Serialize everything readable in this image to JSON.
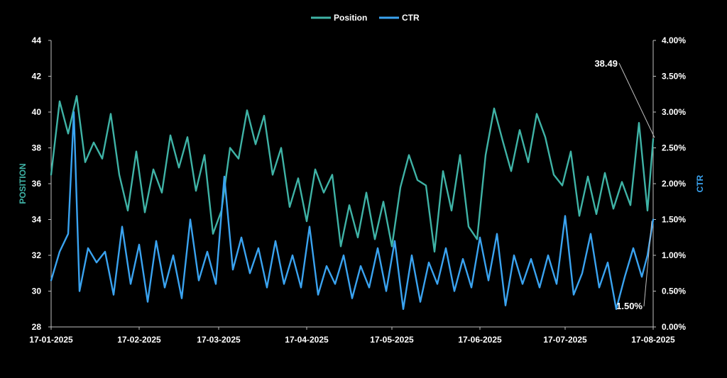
{
  "chart_data": {
    "type": "line",
    "legend": {
      "placement": "top-center",
      "entries": [
        "Position",
        "CTR"
      ]
    },
    "colors": {
      "Position": "#3fb3a6",
      "CTR": "#3aa3f0",
      "background": "#000000",
      "axis": "#bfbfbf"
    },
    "xaxis": {
      "range": [
        "17-01-2025",
        "17-08-2025"
      ],
      "tick_labels": [
        "17-01-2025",
        "17-02-2025",
        "17-03-2025",
        "17-04-2025",
        "17-05-2025",
        "17-06-2025",
        "17-07-2025",
        "17-08-2025"
      ]
    },
    "y_left": {
      "label": "POSITION",
      "range": [
        28,
        44
      ],
      "tick_labels": [
        "28",
        "30",
        "32",
        "34",
        "36",
        "38",
        "40",
        "42",
        "44"
      ]
    },
    "y_right": {
      "label": "CTR",
      "range": [
        0,
        4
      ],
      "tick_labels": [
        "0.00%",
        "0.50%",
        "1.00%",
        "1.50%",
        "2.00%",
        "2.50%",
        "3.00%",
        "3.50%",
        "4.00%"
      ]
    },
    "grid": false,
    "series": [
      {
        "name": "Position",
        "axis": "left",
        "points": [
          [
            "17-01-2025",
            36.5
          ],
          [
            "20-01-2025",
            40.6
          ],
          [
            "23-01-2025",
            38.8
          ],
          [
            "26-01-2025",
            40.9
          ],
          [
            "29-01-2025",
            37.2
          ],
          [
            "01-02-2025",
            38.3
          ],
          [
            "04-02-2025",
            37.4
          ],
          [
            "07-02-2025",
            39.9
          ],
          [
            "10-02-2025",
            36.5
          ],
          [
            "13-02-2025",
            34.5
          ],
          [
            "16-02-2025",
            37.8
          ],
          [
            "19-02-2025",
            34.4
          ],
          [
            "22-02-2025",
            36.8
          ],
          [
            "25-02-2025",
            35.5
          ],
          [
            "28-02-2025",
            38.7
          ],
          [
            "03-03-2025",
            36.9
          ],
          [
            "06-03-2025",
            38.6
          ],
          [
            "09-03-2025",
            35.6
          ],
          [
            "12-03-2025",
            37.6
          ],
          [
            "15-03-2025",
            33.2
          ],
          [
            "18-03-2025",
            34.5
          ],
          [
            "21-03-2025",
            38.0
          ],
          [
            "24-03-2025",
            37.4
          ],
          [
            "27-03-2025",
            40.1
          ],
          [
            "30-03-2025",
            38.2
          ],
          [
            "02-04-2025",
            39.8
          ],
          [
            "05-04-2025",
            36.5
          ],
          [
            "08-04-2025",
            38.0
          ],
          [
            "11-04-2025",
            34.7
          ],
          [
            "14-04-2025",
            36.3
          ],
          [
            "17-04-2025",
            33.9
          ],
          [
            "20-04-2025",
            36.8
          ],
          [
            "23-04-2025",
            35.5
          ],
          [
            "26-04-2025",
            36.5
          ],
          [
            "29-04-2025",
            32.5
          ],
          [
            "02-05-2025",
            34.8
          ],
          [
            "05-05-2025",
            33.0
          ],
          [
            "08-05-2025",
            35.5
          ],
          [
            "11-05-2025",
            32.9
          ],
          [
            "14-05-2025",
            35.0
          ],
          [
            "17-05-2025",
            32.5
          ],
          [
            "20-05-2025",
            35.8
          ],
          [
            "23-05-2025",
            37.6
          ],
          [
            "26-05-2025",
            36.2
          ],
          [
            "29-05-2025",
            35.9
          ],
          [
            "01-06-2025",
            32.2
          ],
          [
            "04-06-2025",
            36.7
          ],
          [
            "07-06-2025",
            34.5
          ],
          [
            "10-06-2025",
            37.6
          ],
          [
            "13-06-2025",
            33.6
          ],
          [
            "16-06-2025",
            32.9
          ],
          [
            "19-06-2025",
            37.6
          ],
          [
            "22-06-2025",
            40.2
          ],
          [
            "25-06-2025",
            38.4
          ],
          [
            "28-06-2025",
            36.7
          ],
          [
            "01-07-2025",
            39.0
          ],
          [
            "04-07-2025",
            37.2
          ],
          [
            "07-07-2025",
            39.9
          ],
          [
            "10-07-2025",
            38.6
          ],
          [
            "13-07-2025",
            36.5
          ],
          [
            "16-07-2025",
            35.9
          ],
          [
            "19-07-2025",
            37.8
          ],
          [
            "22-07-2025",
            34.2
          ],
          [
            "25-07-2025",
            36.4
          ],
          [
            "28-07-2025",
            34.3
          ],
          [
            "31-07-2025",
            36.6
          ],
          [
            "03-08-2025",
            34.6
          ],
          [
            "06-08-2025",
            36.1
          ],
          [
            "09-08-2025",
            34.8
          ],
          [
            "12-08-2025",
            39.4
          ],
          [
            "15-08-2025",
            34.5
          ],
          [
            "17-08-2025",
            38.49
          ]
        ]
      },
      {
        "name": "CTR",
        "axis": "right",
        "points": [
          [
            "17-01-2025",
            0.65
          ],
          [
            "20-01-2025",
            1.05
          ],
          [
            "23-01-2025",
            1.3
          ],
          [
            "25-01-2025",
            3.0
          ],
          [
            "27-01-2025",
            0.5
          ],
          [
            "30-01-2025",
            1.1
          ],
          [
            "02-02-2025",
            0.9
          ],
          [
            "05-02-2025",
            1.05
          ],
          [
            "08-02-2025",
            0.45
          ],
          [
            "11-02-2025",
            1.4
          ],
          [
            "14-02-2025",
            0.6
          ],
          [
            "17-02-2025",
            1.15
          ],
          [
            "20-02-2025",
            0.35
          ],
          [
            "23-02-2025",
            1.2
          ],
          [
            "26-02-2025",
            0.55
          ],
          [
            "01-03-2025",
            1.0
          ],
          [
            "04-03-2025",
            0.4
          ],
          [
            "07-03-2025",
            1.5
          ],
          [
            "10-03-2025",
            0.65
          ],
          [
            "13-03-2025",
            1.05
          ],
          [
            "16-03-2025",
            0.6
          ],
          [
            "19-03-2025",
            2.1
          ],
          [
            "22-03-2025",
            0.8
          ],
          [
            "25-03-2025",
            1.25
          ],
          [
            "28-03-2025",
            0.75
          ],
          [
            "31-03-2025",
            1.1
          ],
          [
            "03-04-2025",
            0.55
          ],
          [
            "06-04-2025",
            1.2
          ],
          [
            "09-04-2025",
            0.6
          ],
          [
            "12-04-2025",
            1.0
          ],
          [
            "15-04-2025",
            0.55
          ],
          [
            "18-04-2025",
            1.4
          ],
          [
            "21-04-2025",
            0.45
          ],
          [
            "24-04-2025",
            0.85
          ],
          [
            "27-04-2025",
            0.6
          ],
          [
            "30-04-2025",
            1.0
          ],
          [
            "03-05-2025",
            0.4
          ],
          [
            "06-05-2025",
            0.85
          ],
          [
            "09-05-2025",
            0.55
          ],
          [
            "12-05-2025",
            1.1
          ],
          [
            "15-05-2025",
            0.5
          ],
          [
            "18-05-2025",
            1.2
          ],
          [
            "21-05-2025",
            0.25
          ],
          [
            "24-05-2025",
            1.0
          ],
          [
            "27-05-2025",
            0.35
          ],
          [
            "30-05-2025",
            0.9
          ],
          [
            "02-06-2025",
            0.6
          ],
          [
            "05-06-2025",
            1.1
          ],
          [
            "08-06-2025",
            0.5
          ],
          [
            "11-06-2025",
            0.95
          ],
          [
            "14-06-2025",
            0.55
          ],
          [
            "17-06-2025",
            1.25
          ],
          [
            "20-06-2025",
            0.65
          ],
          [
            "23-06-2025",
            1.3
          ],
          [
            "26-06-2025",
            0.3
          ],
          [
            "29-06-2025",
            1.0
          ],
          [
            "02-07-2025",
            0.6
          ],
          [
            "05-07-2025",
            0.95
          ],
          [
            "08-07-2025",
            0.55
          ],
          [
            "11-07-2025",
            1.0
          ],
          [
            "14-07-2025",
            0.6
          ],
          [
            "17-07-2025",
            1.55
          ],
          [
            "20-07-2025",
            0.45
          ],
          [
            "23-07-2025",
            0.75
          ],
          [
            "26-07-2025",
            1.3
          ],
          [
            "29-07-2025",
            0.55
          ],
          [
            "01-08-2025",
            0.9
          ],
          [
            "04-08-2025",
            0.25
          ],
          [
            "07-08-2025",
            0.7
          ],
          [
            "10-08-2025",
            1.1
          ],
          [
            "13-08-2025",
            0.7
          ],
          [
            "15-08-2025",
            1.0
          ],
          [
            "17-08-2025",
            1.5
          ]
        ]
      }
    ],
    "annotations": [
      {
        "series": "Position",
        "x": "17-08-2025",
        "text": "38.49"
      },
      {
        "series": "CTR",
        "x": "17-08-2025",
        "text": "1.50%"
      }
    ]
  }
}
